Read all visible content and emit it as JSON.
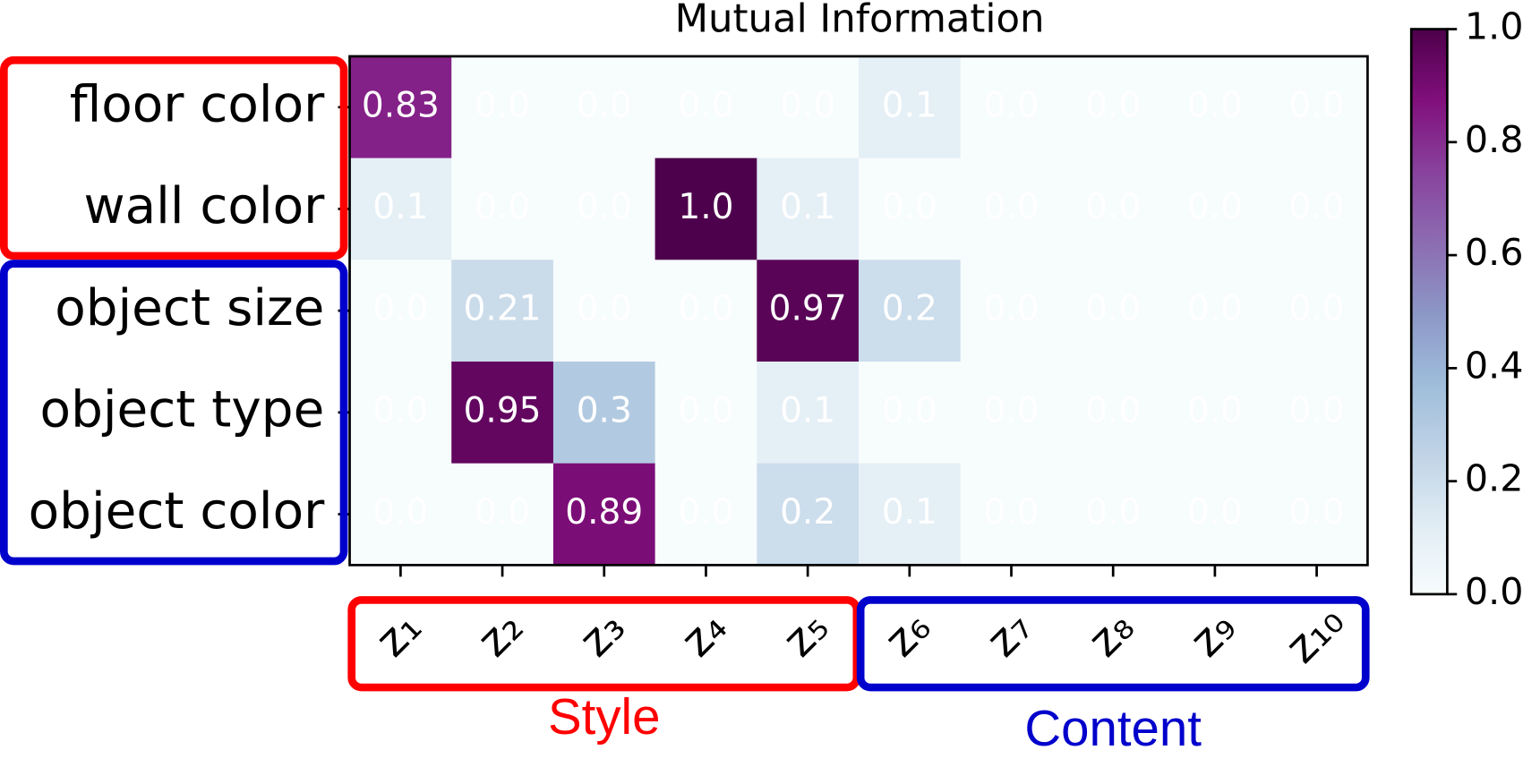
{
  "chart_data": {
    "type": "heatmap",
    "title": "Mutual Information",
    "categories": [
      "z₁",
      "z₂",
      "z₃",
      "z₄",
      "z₅",
      "z₆",
      "z₇",
      "z₈",
      "z₉",
      "z₁₀"
    ],
    "rows": [
      "floor color",
      "wall color",
      "object size",
      "object type",
      "object color"
    ],
    "values": [
      [
        0.83,
        0,
        0,
        0,
        0,
        0.1,
        0,
        0,
        0,
        0
      ],
      [
        0.1,
        0,
        0,
        1,
        0.1,
        0,
        0,
        0,
        0,
        0
      ],
      [
        0,
        0.21,
        0,
        0,
        0.97,
        0.2,
        0,
        0,
        0,
        0
      ],
      [
        0,
        0.95,
        0.3,
        0,
        0.1,
        0,
        0,
        0,
        0,
        0
      ],
      [
        0,
        0,
        0.89,
        0,
        0.2,
        0.1,
        0,
        0,
        0,
        0
      ]
    ],
    "value_labels": [
      [
        "0.83",
        "0.0",
        "0.0",
        "0.0",
        "0.0",
        "0.1",
        "0.0",
        "0.0",
        "0.0",
        "0.0"
      ],
      [
        "0.1",
        "0.0",
        "0.0",
        "1.0",
        "0.1",
        "0.0",
        "0.0",
        "0.0",
        "0.0",
        "0.0"
      ],
      [
        "0.0",
        "0.21",
        "0.0",
        "0.0",
        "0.97",
        "0.2",
        "0.0",
        "0.0",
        "0.0",
        "0.0"
      ],
      [
        "0.0",
        "0.95",
        "0.3",
        "0.0",
        "0.1",
        "0.0",
        "0.0",
        "0.0",
        "0.0",
        "0.0"
      ],
      [
        "0.0",
        "0.0",
        "0.89",
        "0.0",
        "0.2",
        "0.1",
        "0.0",
        "0.0",
        "0.0",
        "0.0"
      ]
    ],
    "colormap": [
      "#f7fcfd",
      "#e0ecf4",
      "#bfd3e6",
      "#9ebcda",
      "#8c96c6",
      "#8c6bb1",
      "#88419d",
      "#810f7c",
      "#4d004b"
    ],
    "zlim": [
      0,
      1
    ],
    "zticks": [
      {
        "value": 0,
        "label": "0.0"
      },
      {
        "value": 0.2,
        "label": "0.2"
      },
      {
        "value": 0.4,
        "label": "0.4"
      },
      {
        "value": 0.6,
        "label": "0.6"
      },
      {
        "value": 0.8,
        "label": "0.8"
      },
      {
        "value": 1,
        "label": "1.0"
      }
    ],
    "groups": [
      {
        "name": "Style",
        "color": "#ff0000",
        "rows": [
          0,
          1
        ],
        "columns": [
          0,
          4
        ]
      },
      {
        "name": "Content",
        "color": "#0000cc",
        "rows": [
          2,
          4
        ],
        "columns": [
          5,
          9
        ]
      }
    ]
  }
}
